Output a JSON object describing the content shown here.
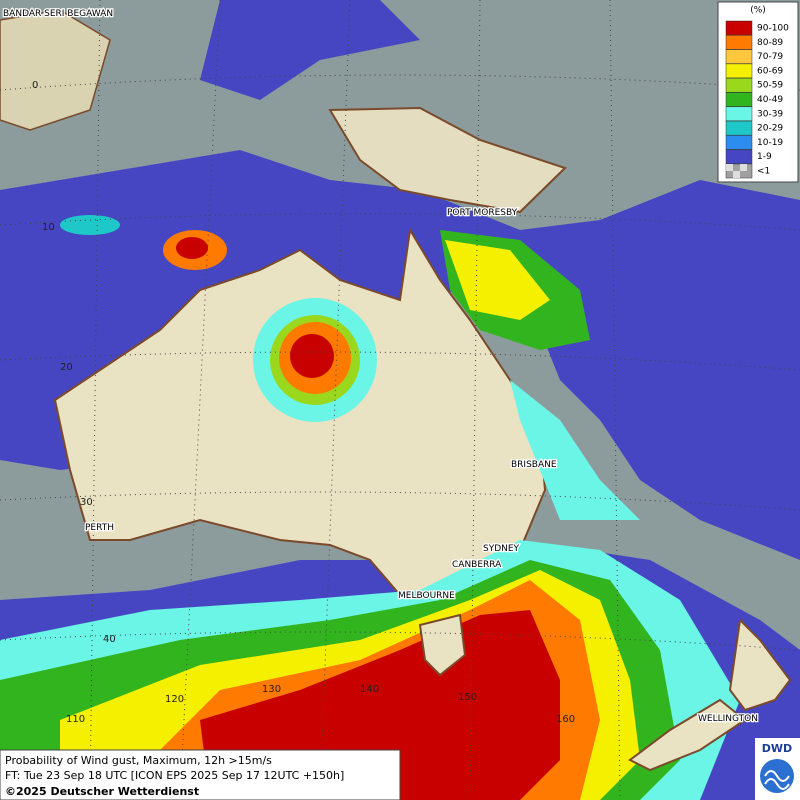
{
  "map": {
    "cities": [
      "BANDAR SERI BEGAWAN",
      "PORT MORESBY",
      "BRISBANE",
      "SYDNEY",
      "CANBERRA",
      "MELBOURNE",
      "PERTH",
      "WELLINGTON"
    ],
    "lat_labels": [
      "0",
      "10",
      "20",
      "30",
      "40"
    ],
    "lon_labels": [
      "110",
      "120",
      "130",
      "140",
      "150",
      "160"
    ]
  },
  "legend": {
    "unit": "(%)",
    "entries": [
      {
        "label": "90-100",
        "color": "#c80000"
      },
      {
        "label": "80-89",
        "color": "#ff7a00"
      },
      {
        "label": "70-79",
        "color": "#ffc83c"
      },
      {
        "label": "60-69",
        "color": "#f5f000"
      },
      {
        "label": "50-59",
        "color": "#9ad81e"
      },
      {
        "label": "40-49",
        "color": "#32b41e"
      },
      {
        "label": "30-39",
        "color": "#6af5e6"
      },
      {
        "label": "20-29",
        "color": "#1ec8c8"
      },
      {
        "label": "10-19",
        "color": "#2d8cf0"
      },
      {
        "label": "1-9",
        "color": "#4646c3"
      },
      {
        "label": "<1",
        "color": "#a0a0a0"
      }
    ]
  },
  "footer": {
    "product": "Probability of Wind gust, Maximum, 12h >15m/s",
    "forecast_time": "FT: Tue 23 Sep 18 UTC [ICON EPS 2025 Sep 17 12UTC +150h]",
    "copyright": "©2025 Deutscher Wetterdienst"
  },
  "logo": "DWD"
}
